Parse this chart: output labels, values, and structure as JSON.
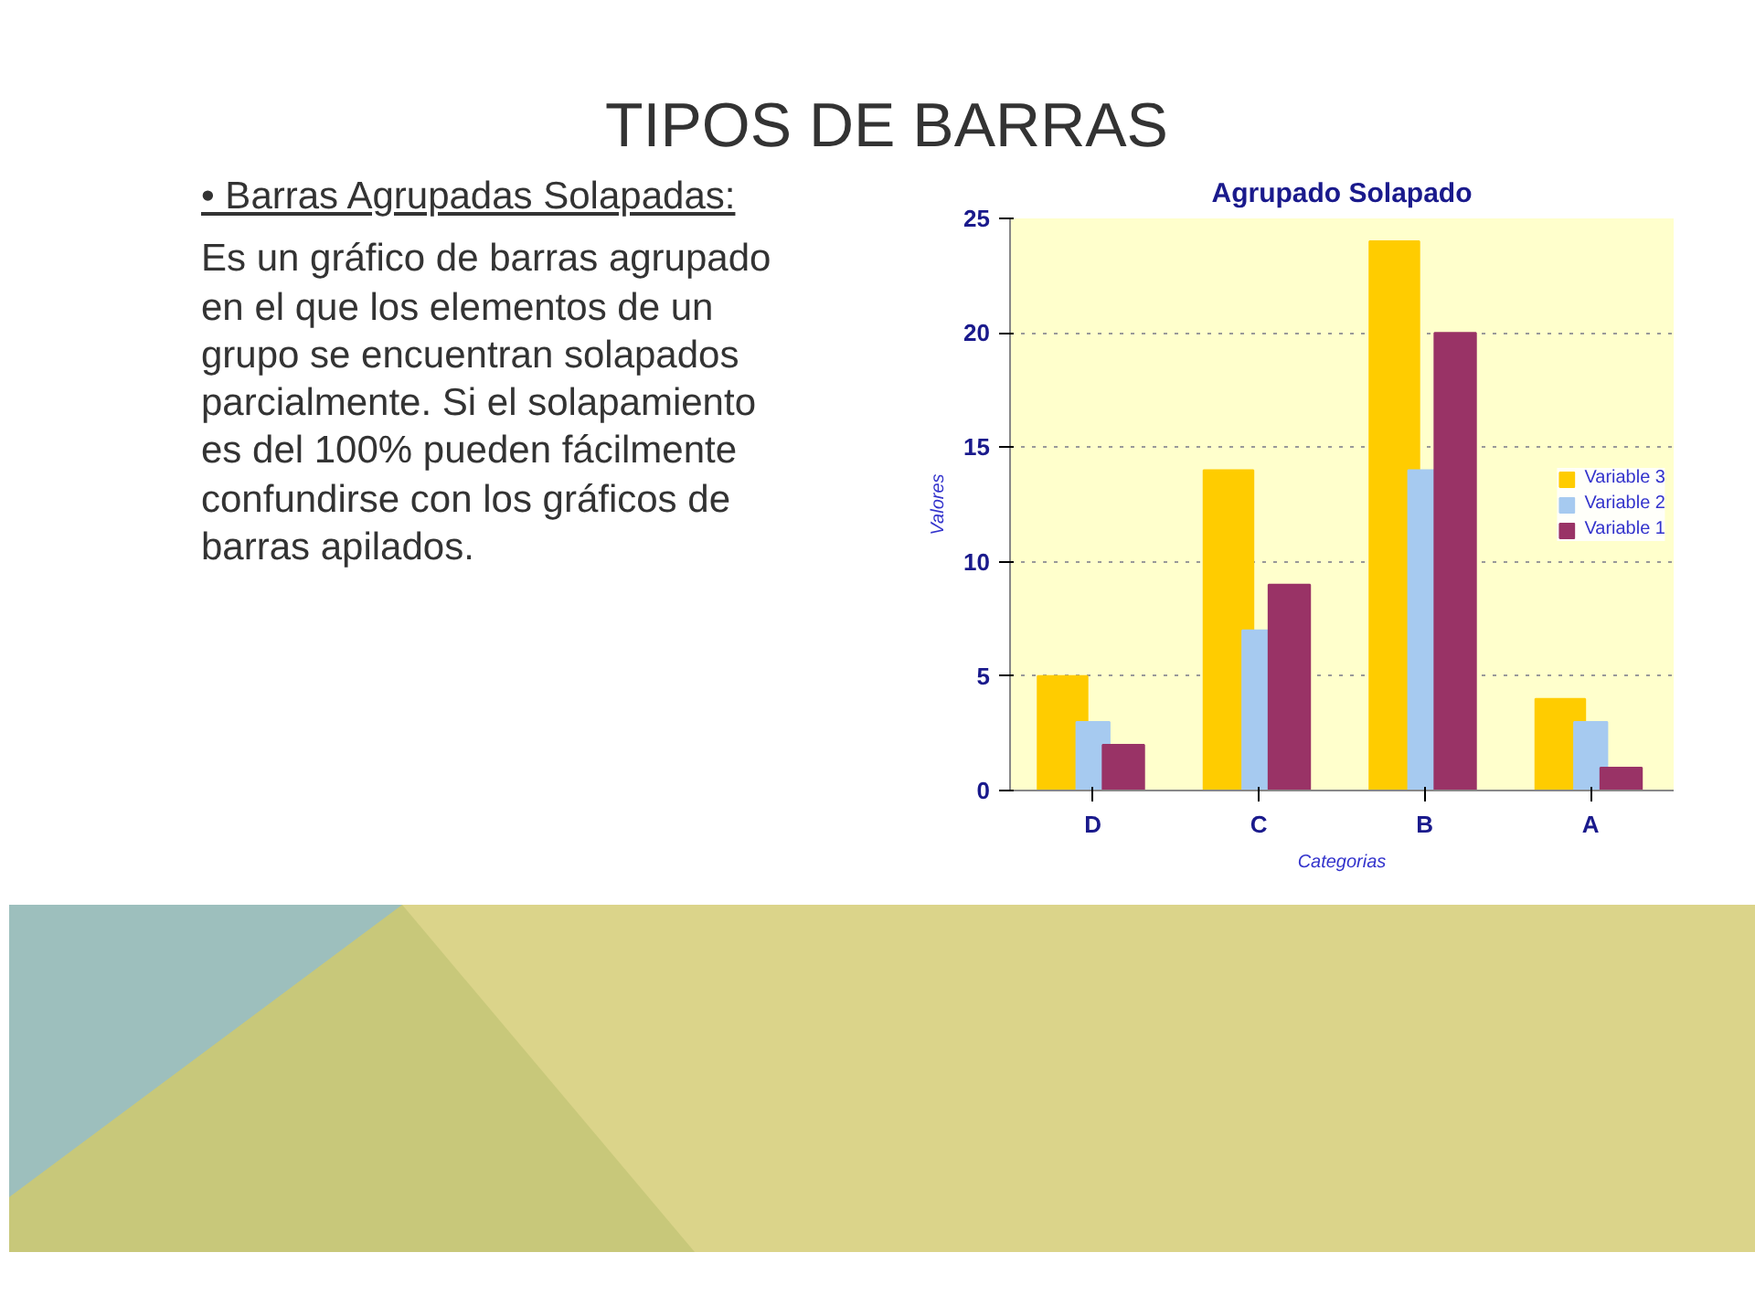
{
  "chart_data": {
    "type": "bar",
    "title": "Agrupado Solapado",
    "xlabel": "Categorias",
    "ylabel": "Valores",
    "categories": [
      "D",
      "C",
      "B",
      "A"
    ],
    "series": [
      {
        "name": "Variable 3",
        "color": "#ffcc00",
        "values": [
          5,
          14,
          24,
          4
        ]
      },
      {
        "name": "Variable 2",
        "color": "#a6caf0",
        "values": [
          3,
          7,
          14,
          3
        ]
      },
      {
        "name": "Variable 1",
        "color": "#993366",
        "values": [
          2,
          9,
          20,
          1
        ]
      }
    ],
    "ylim": [
      0,
      25
    ],
    "yticks": [
      0,
      5,
      10,
      15,
      20,
      25
    ],
    "grid": "y",
    "legend": "right",
    "annotations": [
      "TIPOS DE BARRAS",
      "• Barras Agrupadas Solapadas:",
      "Es un gráfico de barras agrupado en el que los elementos de un grupo se encuentran solapados parcialmente. Si el solapamiento es del 100% pueden fácilmente confundirse con los gráficos de barras apilados."
    ]
  }
}
